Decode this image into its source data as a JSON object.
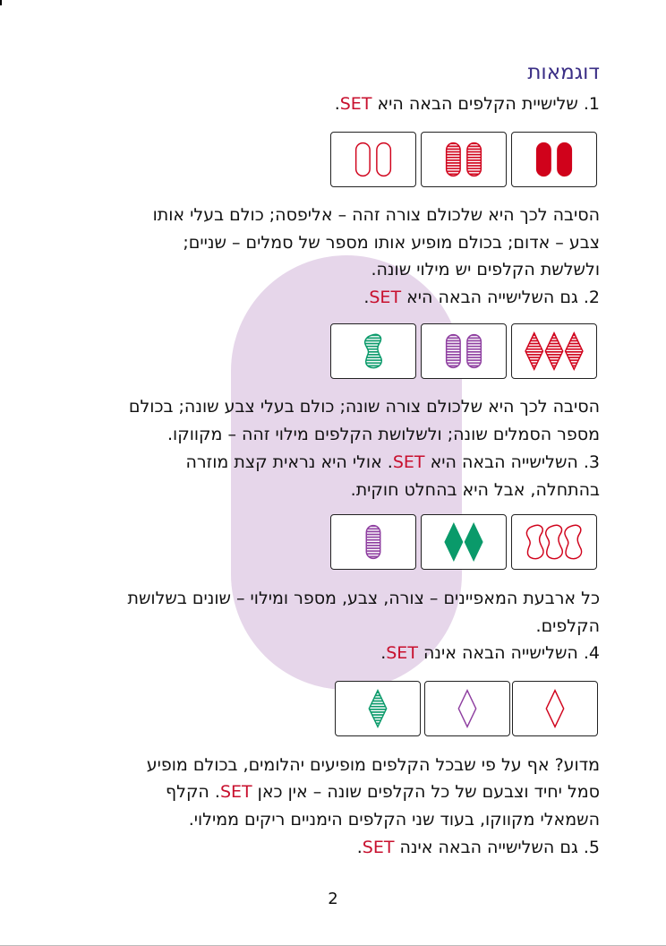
{
  "heading": "דוגמאות",
  "lines": {
    "e1_title": "1. שלישיית הקלפים הבאה היא ",
    "e1_exp1": "הסיבה לכך היא שלכולם צורה זהה – אליפסה; כולם בעלי אותו",
    "e1_exp2": "צבע – אדום; בכולם מופיע אותו מספר של סמלים – שניים;",
    "e1_exp3": "ולשלשת הקלפים יש מילוי שונה.",
    "e2_title": "2. גם השלישייה הבאה היא ",
    "e2_exp1": "הסיבה לכך היא שלכולם צורה שונה; כולם בעלי צבע שונה; בכולם",
    "e2_exp2": "מספר הסמלים שונה; ולשלושת הקלפים מילוי זהה – מקווקו.",
    "e3_title_a": "3. השלישייה הבאה היא ",
    "e3_title_b": ". אולי היא נראית קצת מוזרה",
    "e3_title2": "בהתחלה, אבל היא בהחלט חוקית.",
    "e3_exp1": "כל ארבעת המאפיינים – צורה, צבע, מספר ומילוי – שונים בשלושת",
    "e3_exp2": "הקלפים.",
    "e4_title": "4. השלישייה הבאה אינה ",
    "e4_exp1": "מדוע? אף על פי שבכל הקלפים מופיעים יהלומים, בכולם מופיע",
    "e4_exp2a": "סמל יחיד וצבעם של כל הקלפים שונה – אין כאן ",
    "e4_exp2b": ". הקלף",
    "e4_exp3": "השמאלי מקווקו, בעוד שני הקלפים הימניים ריקים ממילוי.",
    "e5_title": "5. גם השלישייה הבאה אינה "
  },
  "set_word": "SET",
  "page_number": "2",
  "card_rows": [
    {
      "row": "1",
      "cards": [
        {
          "shape": "oval",
          "count": 2,
          "color": "red",
          "fill": "solid"
        },
        {
          "shape": "oval",
          "count": 2,
          "color": "red",
          "fill": "striped"
        },
        {
          "shape": "oval",
          "count": 2,
          "color": "red",
          "fill": "empty"
        }
      ]
    },
    {
      "row": "2",
      "cards": [
        {
          "shape": "diamond",
          "count": 3,
          "color": "red",
          "fill": "striped"
        },
        {
          "shape": "oval",
          "count": 2,
          "color": "purple",
          "fill": "striped"
        },
        {
          "shape": "squiggle",
          "count": 1,
          "color": "green",
          "fill": "striped"
        }
      ]
    },
    {
      "row": "3",
      "cards": [
        {
          "shape": "squiggle",
          "count": 3,
          "color": "red",
          "fill": "empty"
        },
        {
          "shape": "diamond",
          "count": 2,
          "color": "green",
          "fill": "solid"
        },
        {
          "shape": "oval",
          "count": 1,
          "color": "purple",
          "fill": "striped"
        }
      ]
    },
    {
      "row": "4",
      "cards": [
        {
          "shape": "diamond",
          "count": 1,
          "color": "red",
          "fill": "empty"
        },
        {
          "shape": "diamond",
          "count": 1,
          "color": "purple",
          "fill": "empty"
        },
        {
          "shape": "diamond",
          "count": 1,
          "color": "green",
          "fill": "striped"
        }
      ]
    }
  ],
  "colors": {
    "red": "#d0021b",
    "purple": "#8e3ea0",
    "green": "#0a9a6a",
    "heading": "#3b2f86"
  }
}
